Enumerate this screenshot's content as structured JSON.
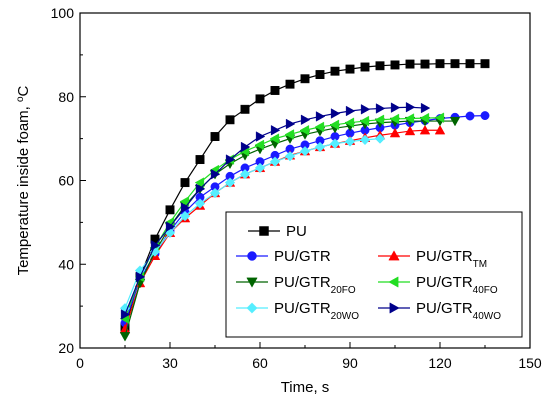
{
  "chart_data": {
    "type": "line",
    "xlabel": "Time, s",
    "ylabel": "Temperature inside foam, ",
    "ylabel_unit_sup": "o",
    "ylabel_unit": "C",
    "xlim": [
      0,
      150
    ],
    "ylim": [
      20,
      100
    ],
    "x_ticks": [
      "0",
      "30",
      "60",
      "90",
      "120",
      "150"
    ],
    "y_ticks": [
      "20",
      "40",
      "60",
      "80",
      "100"
    ],
    "grid": false,
    "legend_position": "lower-right",
    "series": [
      {
        "name": "PU",
        "color": "#000000",
        "marker": "square",
        "x": [
          15,
          20,
          25,
          30,
          35,
          40,
          45,
          50,
          55,
          60,
          65,
          70,
          75,
          80,
          85,
          90,
          95,
          100,
          105,
          110,
          115,
          120,
          125,
          130,
          135
        ],
        "y": [
          25,
          37,
          46,
          53,
          59.5,
          65,
          70.5,
          74.5,
          77,
          79.5,
          81.5,
          83,
          84.3,
          85.3,
          86.1,
          86.6,
          87.1,
          87.4,
          87.6,
          87.8,
          87.8,
          87.9,
          87.9,
          87.9,
          87.9
        ]
      },
      {
        "name": "PU/GTR",
        "name_sub": "",
        "color": "#1a1aff",
        "marker": "circle",
        "x": [
          15,
          20,
          25,
          30,
          35,
          40,
          45,
          50,
          55,
          60,
          65,
          70,
          75,
          80,
          85,
          90,
          95,
          100,
          105,
          110,
          115,
          120,
          125,
          130,
          135
        ],
        "y": [
          26,
          36.5,
          42.5,
          48,
          52.5,
          56,
          58.5,
          61,
          63,
          64.5,
          66,
          67.5,
          68.5,
          69.5,
          70.5,
          71.3,
          72,
          72.6,
          73.2,
          73.8,
          74.3,
          74.8,
          75.1,
          75.4,
          75.5
        ]
      },
      {
        "name": "PU/GTR",
        "name_sub": "TM",
        "color": "#ff0000",
        "marker": "triangle-up",
        "x": [
          15,
          20,
          25,
          30,
          35,
          40,
          45,
          50,
          55,
          60,
          65,
          70,
          75,
          80,
          85,
          90,
          95,
          100,
          105,
          110,
          115,
          120
        ],
        "y": [
          24.5,
          35.5,
          42,
          47.5,
          51,
          54,
          57,
          59.5,
          61.5,
          63,
          64.5,
          66,
          67,
          68,
          68.8,
          69.5,
          70.2,
          70.8,
          71.3,
          71.8,
          72,
          72
        ]
      },
      {
        "name": "PU/GTR",
        "name_sub": "20FO",
        "color": "#006400",
        "marker": "triangle-down",
        "x": [
          15,
          20,
          25,
          30,
          35,
          40,
          45,
          50,
          55,
          60,
          65,
          70,
          75,
          80,
          85,
          90,
          95,
          100,
          105,
          110,
          115,
          120,
          125
        ],
        "y": [
          22.8,
          35.5,
          43,
          49,
          54,
          58,
          61.5,
          64,
          66,
          67.5,
          68.8,
          70,
          71,
          71.8,
          72.5,
          73,
          73.5,
          73.8,
          74,
          74.2,
          74.2,
          74.2,
          74.2
        ]
      },
      {
        "name": "PU/GTR",
        "name_sub": "40FO",
        "color": "#22dd22",
        "marker": "triangle-left",
        "x": [
          15,
          20,
          25,
          30,
          35,
          40,
          45,
          50,
          55,
          60,
          65,
          70,
          75,
          80,
          85,
          90,
          95,
          100,
          105,
          110,
          115,
          120
        ],
        "y": [
          27,
          37,
          44,
          50,
          55,
          59.5,
          62.5,
          65,
          67,
          68.5,
          70,
          71,
          72,
          72.8,
          73.3,
          73.8,
          74.2,
          74.5,
          74.7,
          74.8,
          74.9,
          75
        ]
      },
      {
        "name": "PU/GTR",
        "name_sub": "20WO",
        "color": "#55eeff",
        "marker": "diamond",
        "x": [
          15,
          20,
          25,
          30,
          35,
          40,
          45,
          50,
          55,
          60,
          65,
          70,
          75,
          80,
          85,
          90,
          95,
          100
        ],
        "y": [
          29.5,
          38.5,
          43,
          47.5,
          51.5,
          54.5,
          57,
          59.5,
          61.5,
          63,
          64.5,
          65.8,
          67,
          68,
          68.8,
          69.3,
          69.7,
          70
        ]
      },
      {
        "name": "PU/GTR",
        "name_sub": "40WO",
        "color": "#00008b",
        "marker": "triangle-right",
        "x": [
          15,
          20,
          25,
          30,
          35,
          40,
          45,
          50,
          55,
          60,
          65,
          70,
          75,
          80,
          85,
          90,
          95,
          100,
          105,
          110,
          115
        ],
        "y": [
          28,
          37,
          44.5,
          49,
          53.5,
          58,
          61.5,
          65,
          68,
          70.5,
          72,
          73.5,
          74.5,
          75.3,
          76,
          76.6,
          77,
          77.2,
          77.4,
          77.5,
          77.3
        ]
      }
    ]
  }
}
